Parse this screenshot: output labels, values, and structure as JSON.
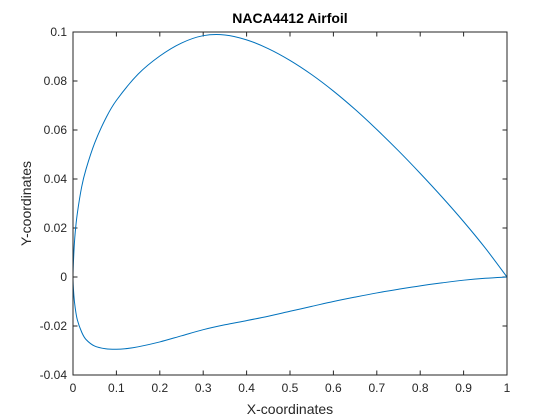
{
  "chart_data": {
    "type": "line",
    "title": "NACA4412 Airfoil",
    "xlabel": "X-coordinates",
    "ylabel": "Y-coordinates",
    "xlim": [
      0,
      1
    ],
    "ylim": [
      -0.04,
      0.1
    ],
    "x_ticks": [
      0,
      0.1,
      0.2,
      0.3,
      0.4,
      0.5,
      0.6,
      0.7,
      0.8,
      0.9,
      1
    ],
    "x_tick_labels": [
      "0",
      "0.1",
      "0.2",
      "0.3",
      "0.4",
      "0.5",
      "0.6",
      "0.7",
      "0.8",
      "0.9",
      "1"
    ],
    "y_ticks": [
      -0.04,
      -0.02,
      0,
      0.02,
      0.04,
      0.06,
      0.08,
      0.1
    ],
    "y_tick_labels": [
      "-0.04",
      "-0.02",
      "0",
      "0.02",
      "0.04",
      "0.06",
      "0.08",
      "0.1"
    ],
    "grid": false,
    "line_color": "#0072BD",
    "series": [
      {
        "x": [
          1.0,
          0.95,
          0.9,
          0.85,
          0.8,
          0.75,
          0.7,
          0.65,
          0.6,
          0.55,
          0.5,
          0.45,
          0.4,
          0.35,
          0.3,
          0.25,
          0.2,
          0.15,
          0.1,
          0.075,
          0.05,
          0.03,
          0.02,
          0.01,
          0.005,
          0.002,
          0.0,
          0.002,
          0.005,
          0.01,
          0.02,
          0.03,
          0.05,
          0.075,
          0.1,
          0.12,
          0.15,
          0.2,
          0.25,
          0.3,
          0.35,
          0.4,
          0.45,
          0.5,
          0.55,
          0.6,
          0.65,
          0.7,
          0.75,
          0.8,
          0.85,
          0.9,
          0.95,
          1.0
        ],
        "y": [
          0.0,
          0.0118,
          0.0226,
          0.0327,
          0.0423,
          0.0515,
          0.0602,
          0.0684,
          0.0759,
          0.0826,
          0.0884,
          0.0932,
          0.0968,
          0.0988,
          0.0985,
          0.0955,
          0.0902,
          0.0828,
          0.0721,
          0.0646,
          0.0547,
          0.044,
          0.0368,
          0.026,
          0.018,
          0.01,
          0.0,
          -0.0075,
          -0.0125,
          -0.0175,
          -0.0225,
          -0.0255,
          -0.0282,
          -0.0293,
          -0.0295,
          -0.0293,
          -0.0285,
          -0.0265,
          -0.024,
          -0.0215,
          -0.0195,
          -0.0178,
          -0.016,
          -0.014,
          -0.012,
          -0.01,
          -0.0082,
          -0.0065,
          -0.005,
          -0.0036,
          -0.0024,
          -0.0013,
          -0.0005,
          0.0
        ]
      }
    ]
  }
}
